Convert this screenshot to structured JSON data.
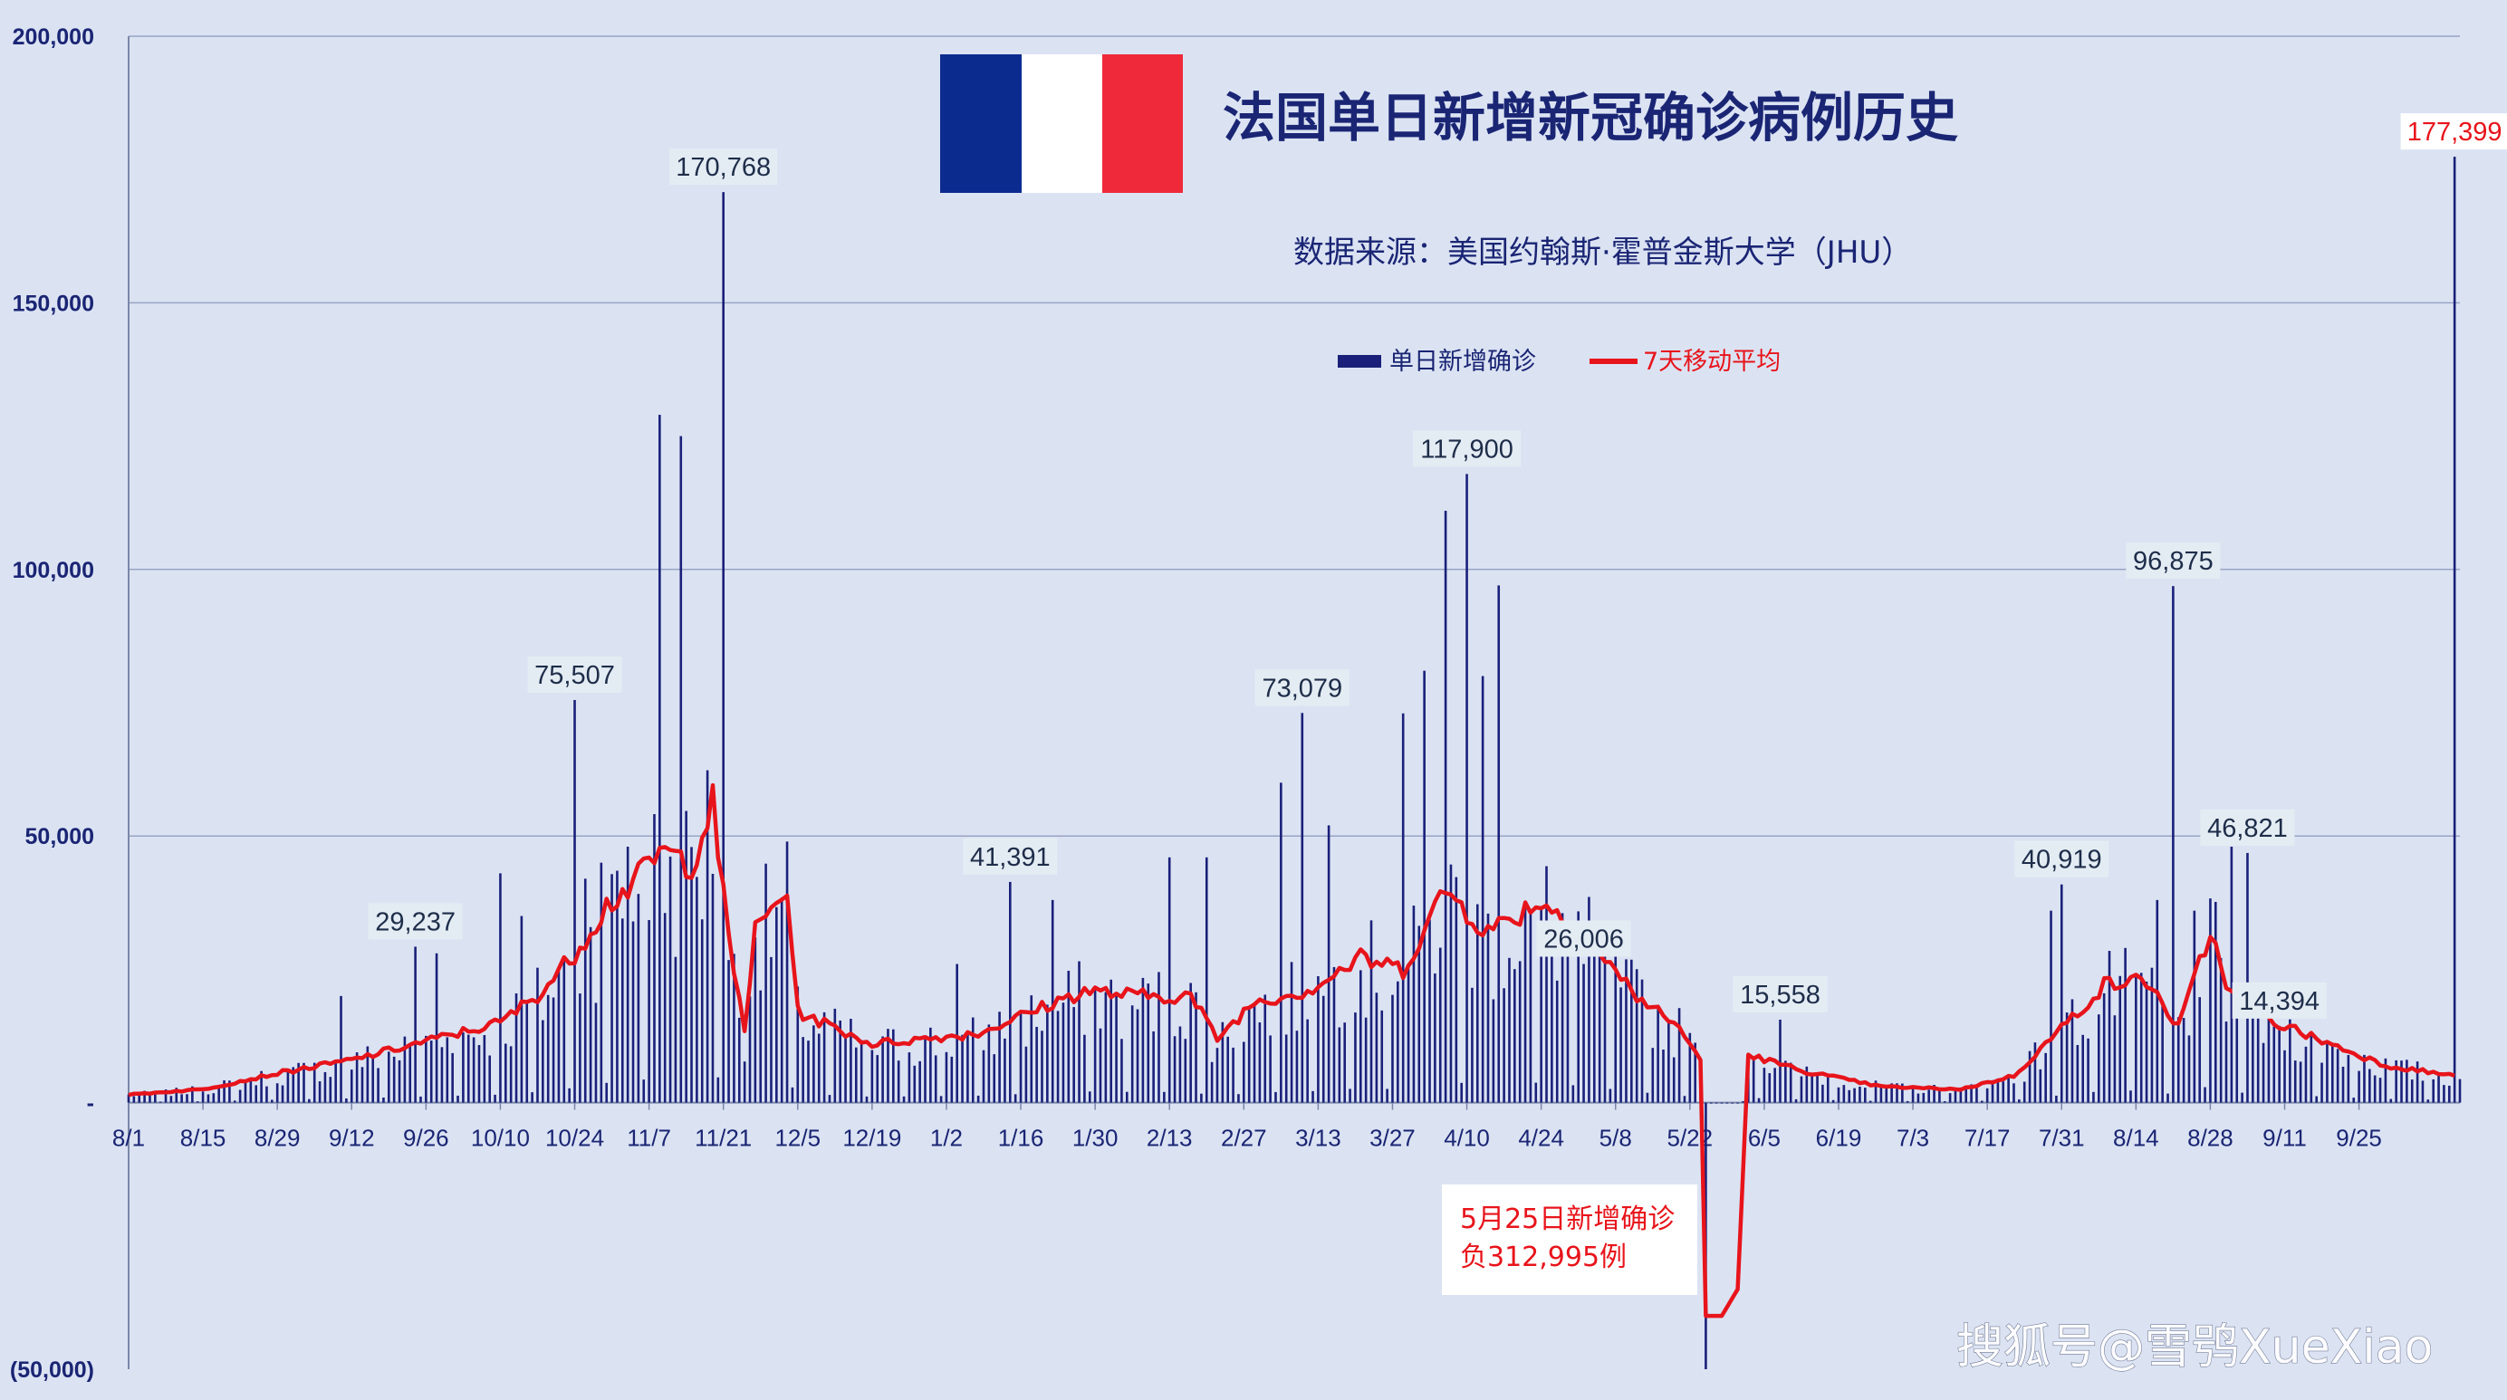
{
  "chart_data": {
    "type": "bar",
    "title": "法国单日新增新冠确诊病例历史",
    "subtitle": "数据来源：美国约翰斯·霍普金斯大学（JHU）",
    "legend": {
      "placement": "top-center",
      "bars_label": "单日新增确诊",
      "line_label": "7天移动平均"
    },
    "colors": {
      "bars": "#1a2079",
      "line": "#e8141b",
      "background": "#dbe3f3",
      "grid": "#98a4c4",
      "axis_text": "#1a2574"
    },
    "ylim": [
      -50000,
      200000
    ],
    "y_ticks": [
      {
        "value": 200000,
        "label": "200,000"
      },
      {
        "value": 150000,
        "label": "150,000"
      },
      {
        "value": 100000,
        "label": "100,000"
      },
      {
        "value": 50000,
        "label": "50,000"
      },
      {
        "value": 0,
        "label": "-"
      },
      {
        "value": -50000,
        "label": "(50,000)"
      }
    ],
    "x_tick_labels": [
      "8/1",
      "8/15",
      "8/29",
      "9/12",
      "9/26",
      "10/10",
      "10/24",
      "11/7",
      "11/21",
      "12/5",
      "12/19",
      "1/2",
      "1/16",
      "1/30",
      "2/13",
      "2/27",
      "3/13",
      "3/27",
      "4/10",
      "4/24",
      "5/8",
      "5/22",
      "6/5",
      "6/19",
      "7/3",
      "7/17",
      "7/31",
      "8/14",
      "8/28",
      "9/11",
      "9/25"
    ],
    "annotated_peaks": [
      {
        "x_day": 54,
        "value": 29237,
        "label": "29,237"
      },
      {
        "x_day": 84,
        "value": 75507,
        "label": "75,507"
      },
      {
        "x_day": 112,
        "value": 170768,
        "label": "170,768"
      },
      {
        "x_day": 166,
        "value": 41391,
        "label": "41,391"
      },
      {
        "x_day": 221,
        "value": 73079,
        "label": "73,079"
      },
      {
        "x_day": 252,
        "value": 117900,
        "label": "117,900"
      },
      {
        "x_day": 274,
        "value": 26006,
        "label": "26,006"
      },
      {
        "x_day": 311,
        "value": 15558,
        "label": "15,558"
      },
      {
        "x_day": 364,
        "value": 40919,
        "label": "40,919"
      },
      {
        "x_day": 385,
        "value": 96875,
        "label": "96,875"
      },
      {
        "x_day": 399,
        "value": 46821,
        "label": "46,821"
      },
      {
        "x_day": 405,
        "value": 14394,
        "label": "14,394"
      },
      {
        "x_day": 438,
        "value": 177399,
        "label": "177,399"
      }
    ],
    "daily_series_note": "Unlabelled daily bars and the 7-day moving average are approximated by the drawing script between the annotated peaks.",
    "negative_note": {
      "line1": "5月25日新增确诊",
      "line2": "负312,995例",
      "x_day": 297,
      "value": -312995
    },
    "watermark": "搜狐号@雪鸮XueXiao"
  }
}
